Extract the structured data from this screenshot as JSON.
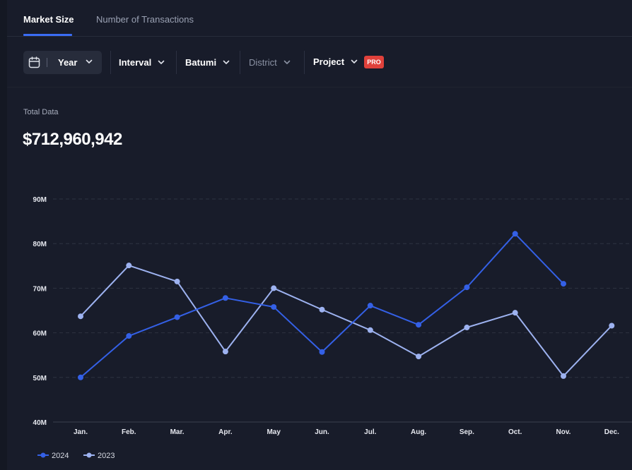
{
  "tabs": [
    {
      "label": "Market Size",
      "active": true
    },
    {
      "label": "Number of Transactions",
      "active": false
    }
  ],
  "filters": {
    "period": "Year",
    "interval": "Interval",
    "city": "Batumi",
    "district": "District",
    "project": "Project",
    "pro_badge": "PRO"
  },
  "summary": {
    "label": "Total Data",
    "value": "$712,960,942"
  },
  "colors": {
    "series_2024": "#3460e6",
    "series_2023": "#9db2f0",
    "accent": "#3a6cf4",
    "badge": "#e0413b"
  },
  "chart_data": {
    "type": "line",
    "categories": [
      "Jan.",
      "Feb.",
      "Mar.",
      "Apr.",
      "May",
      "Jun.",
      "Jul.",
      "Aug.",
      "Sep.",
      "Oct.",
      "Nov.",
      "Dec."
    ],
    "ylim": [
      40,
      90
    ],
    "yticks": [
      40,
      50,
      60,
      70,
      80,
      90
    ],
    "ytick_labels": [
      "40M",
      "50M",
      "60M",
      "70M",
      "80M",
      "90M"
    ],
    "grid": true,
    "legend_position": "bottom-left",
    "series": [
      {
        "name": "2024",
        "values": [
          50.0,
          59.3,
          63.5,
          67.8,
          65.8,
          55.7,
          66.1,
          61.8,
          70.2,
          82.2,
          71.0,
          null
        ]
      },
      {
        "name": "2023",
        "values": [
          63.7,
          75.1,
          71.5,
          55.8,
          70.0,
          65.2,
          60.6,
          54.7,
          61.2,
          64.5,
          50.3,
          61.6
        ]
      }
    ]
  }
}
